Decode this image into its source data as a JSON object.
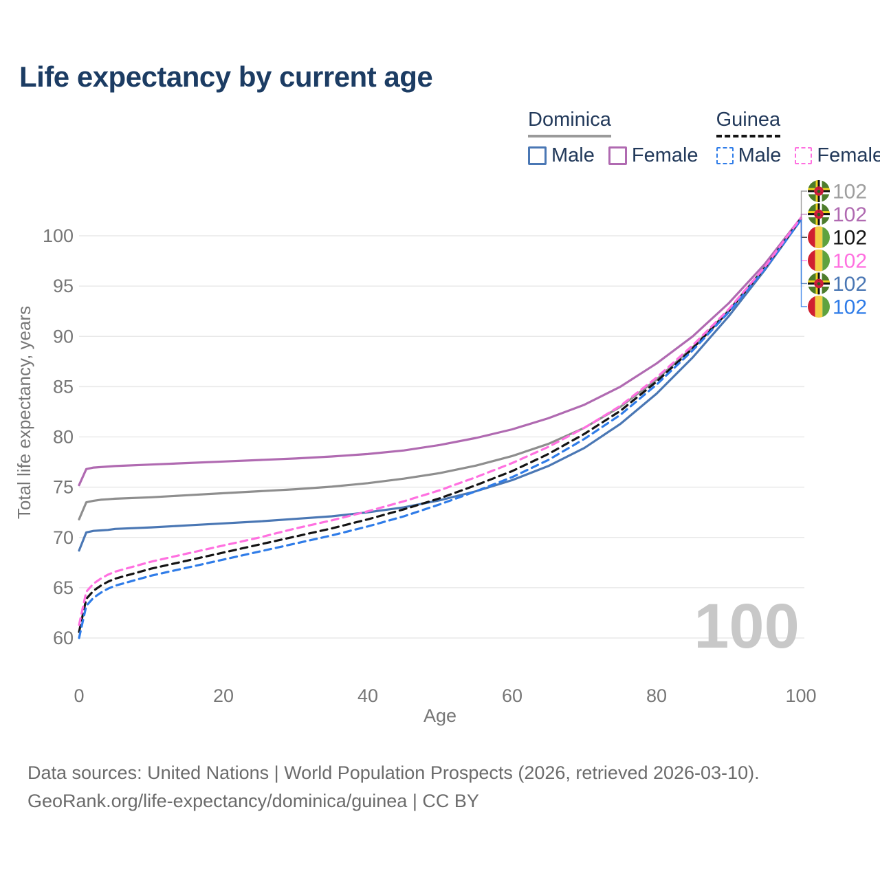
{
  "title": "Life expectancy by current age",
  "legend": {
    "groups": [
      {
        "label": "Dominica",
        "line_style": "solid",
        "line_color": "#9a9a9a",
        "items": [
          {
            "label": "Male",
            "color": "#4a77b4",
            "dashed": false
          },
          {
            "label": "Female",
            "color": "#b06ab1",
            "dashed": false
          }
        ]
      },
      {
        "label": "Guinea",
        "line_style": "dashed",
        "line_color": "#141414",
        "items": [
          {
            "label": "Male",
            "color": "#2f7ce8",
            "dashed": true
          },
          {
            "label": "Female",
            "color": "#ff70e0",
            "dashed": true
          }
        ]
      }
    ]
  },
  "watermark": "100",
  "footer": {
    "line1": "Data sources: United Nations | World Population Prospects (2026, retrieved 2026-03-10).",
    "line2": "GeoRank.org/life-expectancy/dominica/guinea | CC BY"
  },
  "chart_data": {
    "type": "line",
    "title": "Life expectancy by current age",
    "xlabel": "Age",
    "ylabel": "Total life expectancy, years",
    "xlim": [
      0,
      100
    ],
    "ylim": [
      60,
      102.5
    ],
    "x_ticks": [
      0,
      20,
      40,
      60,
      80,
      100
    ],
    "y_ticks": [
      60,
      65,
      70,
      75,
      80,
      85,
      90,
      95,
      100
    ],
    "grid": "horizontal-only",
    "legend_position": "top-right",
    "x": [
      0,
      1,
      2,
      3,
      4,
      5,
      10,
      15,
      20,
      25,
      30,
      35,
      40,
      45,
      50,
      55,
      60,
      65,
      70,
      75,
      80,
      85,
      90,
      95,
      100
    ],
    "series": [
      {
        "name": "Dominica - All",
        "flag": "dominica",
        "color": "#8e8e8e",
        "label_color": "#9e9e9e",
        "dashed": false,
        "end_label": "102",
        "values": [
          71.8,
          73.5,
          73.65,
          73.75,
          73.8,
          73.85,
          74.0,
          74.2,
          74.4,
          74.6,
          74.8,
          75.05,
          75.4,
          75.85,
          76.4,
          77.15,
          78.1,
          79.3,
          80.9,
          83.0,
          85.7,
          88.9,
          92.6,
          96.9,
          101.7
        ]
      },
      {
        "name": "Dominica - Female",
        "flag": "dominica",
        "color": "#b06ab1",
        "label_color": "#b06ab1",
        "dashed": false,
        "end_label": "102",
        "values": [
          75.2,
          76.8,
          76.95,
          77.0,
          77.05,
          77.1,
          77.25,
          77.4,
          77.55,
          77.7,
          77.85,
          78.05,
          78.3,
          78.65,
          79.2,
          79.9,
          80.75,
          81.85,
          83.2,
          85.0,
          87.3,
          90.0,
          93.3,
          97.2,
          101.8
        ]
      },
      {
        "name": "Guinea - All",
        "flag": "guinea",
        "color": "#141414",
        "label_color": "#141414",
        "dashed": true,
        "end_label": "102",
        "values": [
          60.6,
          63.9,
          64.7,
          65.2,
          65.6,
          65.9,
          66.9,
          67.7,
          68.5,
          69.3,
          70.1,
          70.9,
          71.8,
          72.8,
          73.9,
          75.2,
          76.6,
          78.3,
          80.3,
          82.6,
          85.5,
          88.8,
          92.5,
          96.8,
          101.7
        ]
      },
      {
        "name": "Guinea - Female",
        "flag": "guinea",
        "color": "#ff70e0",
        "label_color": "#ff70e0",
        "dashed": true,
        "end_label": "102",
        "values": [
          61.3,
          64.6,
          65.4,
          65.9,
          66.3,
          66.6,
          67.6,
          68.4,
          69.2,
          70.0,
          70.9,
          71.7,
          72.6,
          73.6,
          74.7,
          76.0,
          77.4,
          79.0,
          80.9,
          83.1,
          85.9,
          89.1,
          92.7,
          96.9,
          101.8
        ]
      },
      {
        "name": "Dominica - Male",
        "flag": "dominica",
        "color": "#4a77b4",
        "label_color": "#4a77b4",
        "dashed": false,
        "end_label": "102",
        "values": [
          68.7,
          70.5,
          70.65,
          70.7,
          70.75,
          70.85,
          71.0,
          71.2,
          71.4,
          71.6,
          71.85,
          72.1,
          72.5,
          73.0,
          73.7,
          74.6,
          75.7,
          77.1,
          78.9,
          81.3,
          84.3,
          87.9,
          92.0,
          96.6,
          101.6
        ]
      },
      {
        "name": "Guinea - Male",
        "flag": "guinea",
        "color": "#2f7ce8",
        "label_color": "#2f7ce8",
        "dashed": true,
        "end_label": "102",
        "values": [
          60.0,
          63.2,
          64.0,
          64.5,
          64.9,
          65.2,
          66.2,
          67.0,
          67.8,
          68.6,
          69.4,
          70.2,
          71.1,
          72.1,
          73.3,
          74.6,
          76.0,
          77.7,
          79.8,
          82.2,
          85.2,
          88.6,
          92.4,
          96.7,
          101.6
        ]
      }
    ]
  }
}
